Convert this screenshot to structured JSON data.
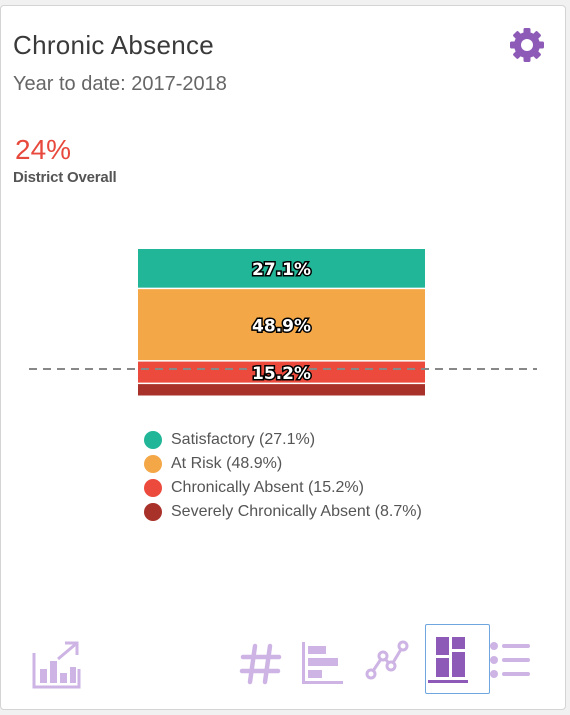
{
  "header": {
    "title": "Chronic Absence",
    "subtitle": "Year to date: 2017-2018"
  },
  "summary": {
    "value": "24%",
    "label": "District Overall"
  },
  "chart_data": {
    "type": "bar",
    "stacked": true,
    "categories": [
      "District"
    ],
    "series": [
      {
        "name": "Satisfactory",
        "value": 27.1,
        "label": "27.1%",
        "color": "#21b697"
      },
      {
        "name": "At Risk",
        "value": 48.9,
        "label": "48.9%",
        "color": "#f4a746"
      },
      {
        "name": "Chronically Absent",
        "value": 15.2,
        "label": "15.2%",
        "color": "#eb4a3d"
      },
      {
        "name": "Severely Chronically Absent",
        "value": 8.7,
        "label": "",
        "color": "#a83129"
      }
    ],
    "reference_line": 24,
    "legend": [
      {
        "text": "Satisfactory (27.1%)",
        "color": "#21b697"
      },
      {
        "text": "At Risk (48.9%)",
        "color": "#f4a746"
      },
      {
        "text": "Chronically Absent (15.2%)",
        "color": "#eb4a3d"
      },
      {
        "text": "Severely Chronically Absent (8.7%)",
        "color": "#a83129"
      }
    ]
  },
  "colors": {
    "accent": "#8e5ab7",
    "icon_light": "#cdb4e4",
    "selected_border": "#6fa6df",
    "summary_red": "#e8493d"
  },
  "footer": {
    "export_icon": "chart-export-icon",
    "views": [
      {
        "icon": "hash-icon",
        "selected": false
      },
      {
        "icon": "horizontal-bar-chart-icon",
        "selected": false
      },
      {
        "icon": "line-chart-icon",
        "selected": false
      },
      {
        "icon": "stacked-bar-chart-icon",
        "selected": true
      },
      {
        "icon": "list-icon",
        "selected": false
      }
    ]
  }
}
